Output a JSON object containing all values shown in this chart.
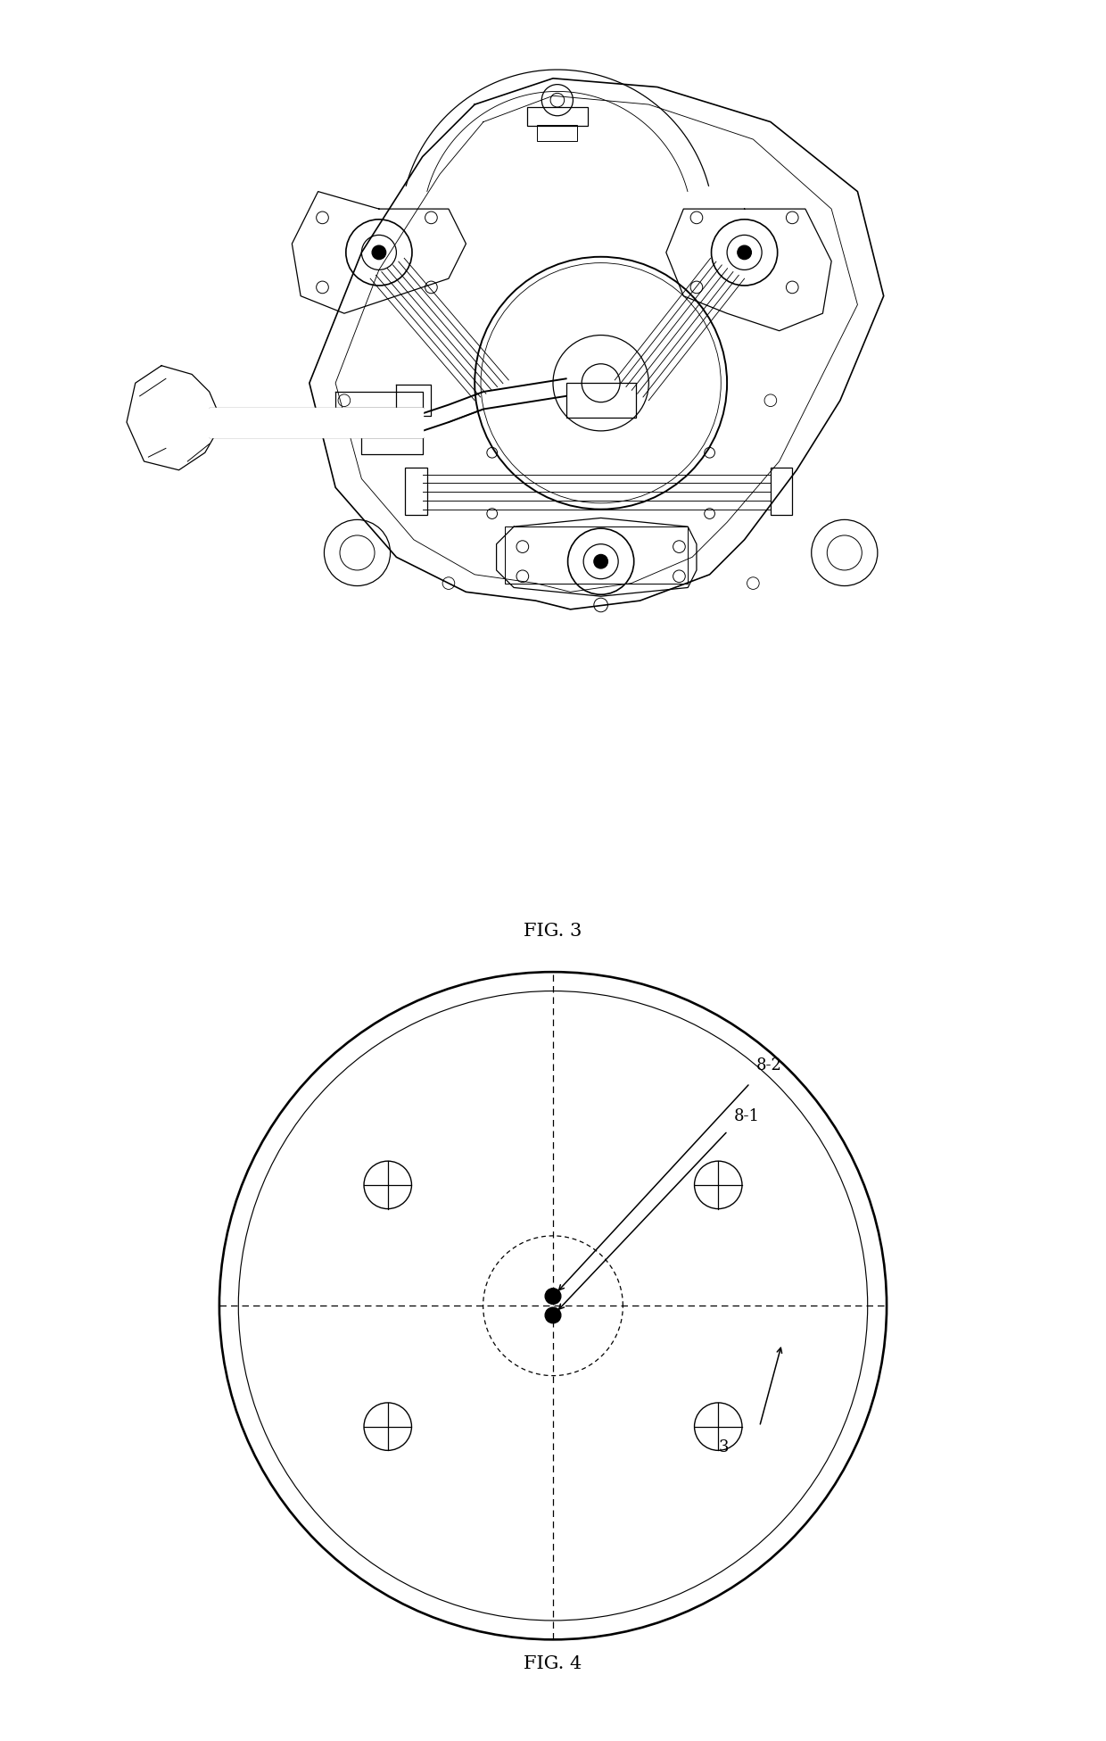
{
  "fig3_label": "FIG. 3",
  "fig4_label": "FIG. 4",
  "background_color": "#ffffff",
  "line_color": "#000000",
  "label_82": "8-2",
  "label_81": "8-1",
  "label_3": "3",
  "label_fontsize": 13,
  "caption_fontsize": 15
}
